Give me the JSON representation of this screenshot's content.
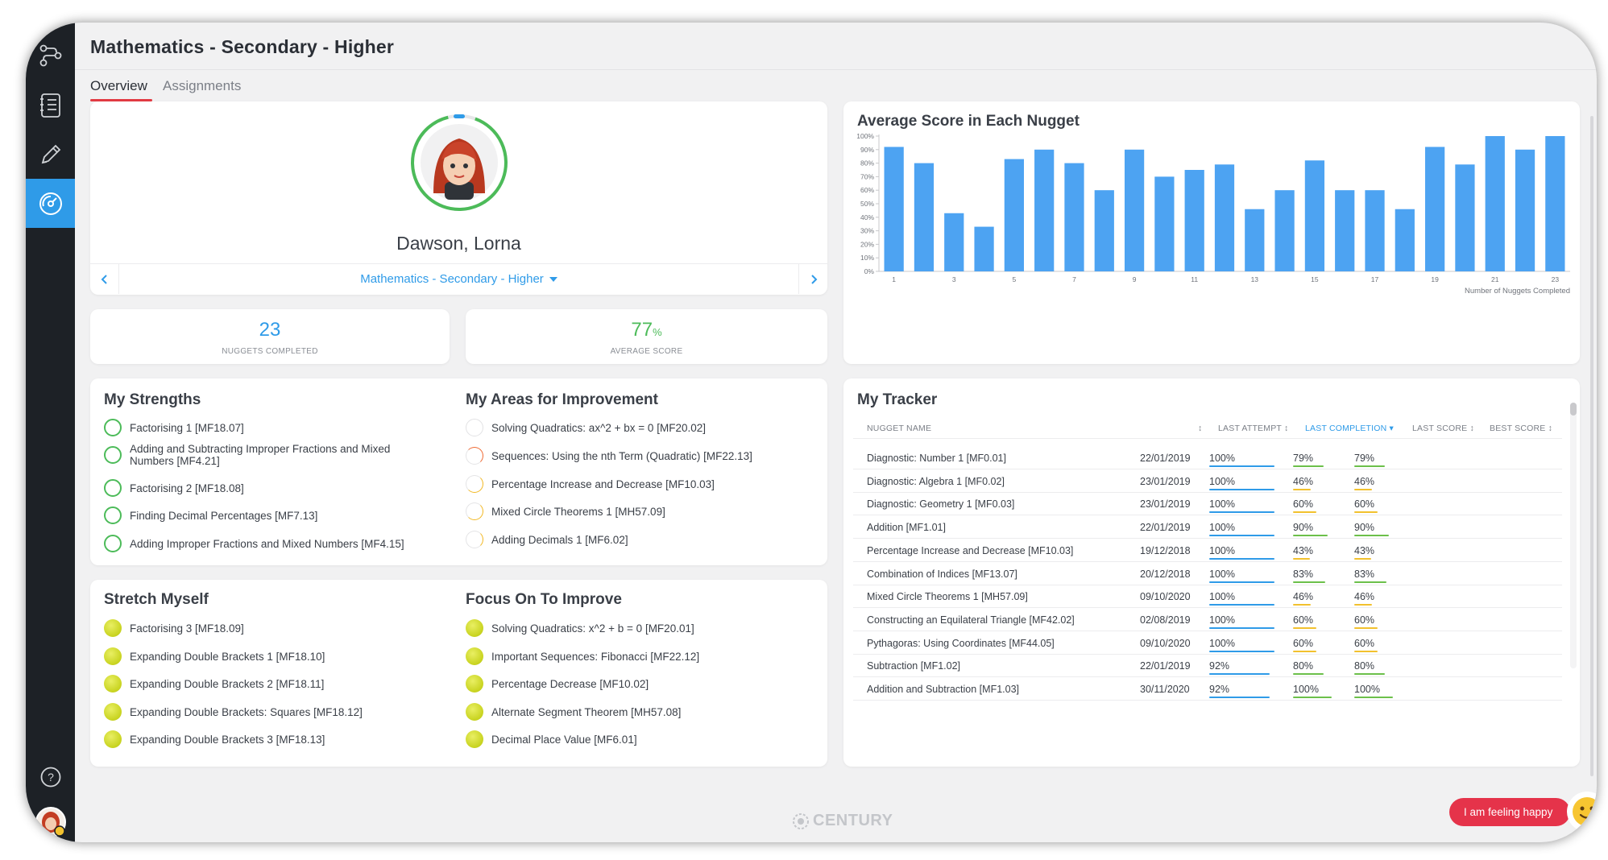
{
  "page": {
    "title": "Mathematics - Secondary - Higher"
  },
  "tabs": [
    {
      "label": "Overview",
      "active": true
    },
    {
      "label": "Assignments",
      "active": false
    }
  ],
  "sidebar": {
    "items": [
      {
        "icon": "pathway-icon"
      },
      {
        "icon": "courses-list-icon"
      },
      {
        "icon": "pencil-icon"
      },
      {
        "icon": "dashboard-gauge-icon",
        "active": true
      }
    ],
    "bottom": [
      {
        "icon": "help-icon"
      },
      {
        "icon": "user-avatar-icon"
      }
    ]
  },
  "profile": {
    "name": "Dawson, Lorna",
    "course": "Mathematics - Secondary - Higher"
  },
  "stats": {
    "nuggets_completed": {
      "value": "23",
      "label": "NUGGETS COMPLETED"
    },
    "average_score": {
      "value": "77",
      "unit": "%",
      "label": "AVERAGE SCORE"
    }
  },
  "chart": {
    "title": "Average Score in Each Nugget",
    "xlabel": "Number of Nuggets Completed"
  },
  "chart_data": {
    "type": "bar",
    "title": "Average Score in Each Nugget",
    "xlabel": "Number of Nuggets Completed",
    "ylabel": "",
    "categories": [
      "1",
      "2",
      "3",
      "4",
      "5",
      "6",
      "7",
      "8",
      "9",
      "10",
      "11",
      "12",
      "13",
      "14",
      "15",
      "16",
      "17",
      "18",
      "19",
      "20",
      "21",
      "22",
      "23"
    ],
    "tick_labels_x": [
      "1",
      "3",
      "5",
      "7",
      "9",
      "11",
      "13",
      "15",
      "17",
      "19",
      "21",
      "23"
    ],
    "tick_labels_y": [
      "0%",
      "10%",
      "20%",
      "30%",
      "40%",
      "50%",
      "60%",
      "70%",
      "80%",
      "90%",
      "100%"
    ],
    "values": [
      92,
      80,
      43,
      33,
      83,
      90,
      80,
      60,
      90,
      70,
      75,
      79,
      46,
      60,
      82,
      60,
      60,
      46,
      92,
      79,
      100,
      90,
      100
    ],
    "ylim": [
      0,
      100
    ],
    "color": "#4da3f2",
    "grid": false
  },
  "strengths": {
    "title": "My Strengths",
    "items": [
      "Factorising 1 [MF18.07]",
      "Adding and Subtracting Improper Fractions and Mixed Numbers [MF4.21]",
      "Factorising 2 [MF18.08]",
      "Finding Decimal Percentages [MF7.13]",
      "Adding Improper Fractions and Mixed Numbers [MF4.15]"
    ]
  },
  "improvement": {
    "title": "My Areas for Improvement",
    "items": [
      "Solving Quadratics: ax^2 + bx = 0 [MF20.02]",
      "Sequences: Using the nth Term (Quadratic) [MF22.13]",
      "Percentage Increase and Decrease [MF10.03]",
      "Mixed Circle Theorems 1 [MH57.09]",
      "Adding Decimals 1 [MF6.02]"
    ]
  },
  "stretch": {
    "title": "Stretch Myself",
    "items": [
      "Factorising 3 [MF18.09]",
      "Expanding Double Brackets 1 [MF18.10]",
      "Expanding Double Brackets 2 [MF18.11]",
      "Expanding Double Brackets: Squares [MF18.12]",
      "Expanding Double Brackets 3 [MF18.13]"
    ]
  },
  "focus": {
    "title": "Focus On To Improve",
    "items": [
      "Solving Quadratics: x^2 + b = 0 [MF20.01]",
      "Important Sequences: Fibonacci [MF22.12]",
      "Percentage Decrease [MF10.02]",
      "Alternate Segment Theorem [MH57.08]",
      "Decimal Place Value [MF6.01]"
    ]
  },
  "tracker": {
    "title": "My Tracker",
    "columns": [
      "NUGGET NAME",
      "LAST ATTEMPT",
      "LAST COMPLETION",
      "LAST SCORE",
      "BEST SCORE"
    ],
    "rows": [
      {
        "name": "Diagnostic: Number 1 [MF0.01]",
        "attempt": "22/01/2019",
        "completion": "100%",
        "last": "79%",
        "best": "79%",
        "c": 1.0,
        "l": 0.79,
        "b": 0.79
      },
      {
        "name": "Diagnostic: Algebra 1 [MF0.02]",
        "attempt": "23/01/2019",
        "completion": "100%",
        "last": "46%",
        "best": "46%",
        "c": 1.0,
        "l": 0.46,
        "b": 0.46
      },
      {
        "name": "Diagnostic: Geometry 1 [MF0.03]",
        "attempt": "23/01/2019",
        "completion": "100%",
        "last": "60%",
        "best": "60%",
        "c": 1.0,
        "l": 0.6,
        "b": 0.6
      },
      {
        "name": "Addition [MF1.01]",
        "attempt": "22/01/2019",
        "completion": "100%",
        "last": "90%",
        "best": "90%",
        "c": 1.0,
        "l": 0.9,
        "b": 0.9
      },
      {
        "name": "Percentage Increase and Decrease [MF10.03]",
        "attempt": "19/12/2018",
        "completion": "100%",
        "last": "43%",
        "best": "43%",
        "c": 1.0,
        "l": 0.43,
        "b": 0.43
      },
      {
        "name": "Combination of Indices [MF13.07]",
        "attempt": "20/12/2018",
        "completion": "100%",
        "last": "83%",
        "best": "83%",
        "c": 1.0,
        "l": 0.83,
        "b": 0.83
      },
      {
        "name": "Mixed Circle Theorems 1 [MH57.09]",
        "attempt": "09/10/2020",
        "completion": "100%",
        "last": "46%",
        "best": "46%",
        "c": 1.0,
        "l": 0.46,
        "b": 0.46
      },
      {
        "name": "Constructing an Equilateral Triangle [MF42.02]",
        "attempt": "02/08/2019",
        "completion": "100%",
        "last": "60%",
        "best": "60%",
        "c": 1.0,
        "l": 0.6,
        "b": 0.6
      },
      {
        "name": "Pythagoras: Using Coordinates [MF44.05]",
        "attempt": "09/10/2020",
        "completion": "100%",
        "last": "60%",
        "best": "60%",
        "c": 1.0,
        "l": 0.6,
        "b": 0.6
      },
      {
        "name": "Subtraction [MF1.02]",
        "attempt": "22/01/2019",
        "completion": "92%",
        "last": "80%",
        "best": "80%",
        "c": 0.92,
        "l": 0.8,
        "b": 0.8
      },
      {
        "name": "Addition and Subtraction [MF1.03]",
        "attempt": "30/11/2020",
        "completion": "92%",
        "last": "100%",
        "best": "100%",
        "c": 0.92,
        "l": 1.0,
        "b": 1.0
      }
    ]
  },
  "footer": {
    "brand": "CENTURY"
  },
  "mood": {
    "label": "I am feeling happy"
  },
  "colors": {
    "accent": "#2f9be8",
    "green": "#4cbb59",
    "tab_underline": "#e23b43",
    "score_green": "#6cc04a",
    "score_yellow": "#f2c12e",
    "mood_red": "#e5334a"
  }
}
